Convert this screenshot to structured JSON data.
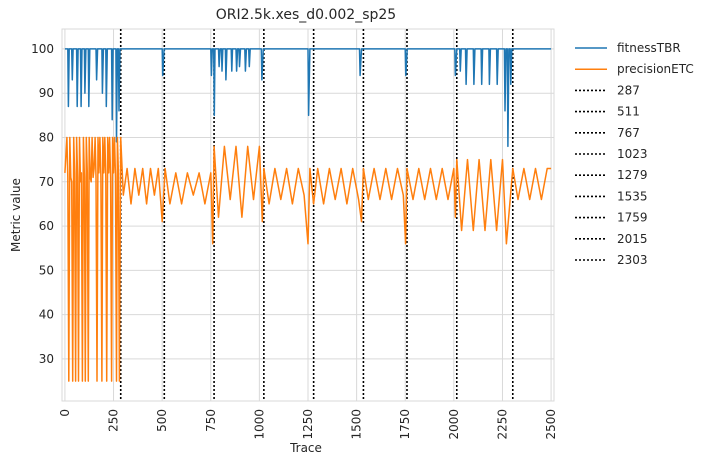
{
  "chart_data": {
    "type": "line",
    "title": "ORI2.5k.xes_d0.002_sp25",
    "xlabel": "Trace",
    "ylabel": "Metric value",
    "xlim": [
      -15,
      2515
    ],
    "ylim": [
      20.5,
      104.5
    ],
    "xticks": [
      0,
      250,
      500,
      750,
      1000,
      1250,
      1500,
      1750,
      2000,
      2250,
      2500
    ],
    "yticks": [
      30,
      40,
      50,
      60,
      70,
      80,
      90,
      100
    ],
    "grid": true,
    "legend_position": "outside-right",
    "series": [
      {
        "name": "fitnessTBR",
        "color": "#1f77b4",
        "points": [
          [
            0,
            100
          ],
          [
            15,
            100
          ],
          [
            18,
            87
          ],
          [
            22,
            100
          ],
          [
            35,
            100
          ],
          [
            38,
            93
          ],
          [
            42,
            100
          ],
          [
            60,
            100
          ],
          [
            63,
            87
          ],
          [
            68,
            100
          ],
          [
            80,
            100
          ],
          [
            83,
            87
          ],
          [
            88,
            100
          ],
          [
            100,
            100
          ],
          [
            103,
            90
          ],
          [
            108,
            100
          ],
          [
            120,
            100
          ],
          [
            123,
            87
          ],
          [
            128,
            100
          ],
          [
            160,
            100
          ],
          [
            163,
            93
          ],
          [
            168,
            100
          ],
          [
            190,
            100
          ],
          [
            193,
            90
          ],
          [
            198,
            100
          ],
          [
            210,
            100
          ],
          [
            213,
            87
          ],
          [
            218,
            100
          ],
          [
            240,
            100
          ],
          [
            243,
            84
          ],
          [
            248,
            100
          ],
          [
            262,
            100
          ],
          [
            265,
            79
          ],
          [
            270,
            100
          ],
          [
            275,
            100
          ],
          [
            278,
            86
          ],
          [
            283,
            100
          ],
          [
            500,
            100
          ],
          [
            503,
            94
          ],
          [
            510,
            100
          ],
          [
            750,
            100
          ],
          [
            753,
            94
          ],
          [
            758,
            100
          ],
          [
            765,
            100
          ],
          [
            768,
            85
          ],
          [
            772,
            100
          ],
          [
            790,
            100
          ],
          [
            793,
            96
          ],
          [
            798,
            100
          ],
          [
            805,
            100
          ],
          [
            808,
            95
          ],
          [
            812,
            100
          ],
          [
            825,
            100
          ],
          [
            828,
            93
          ],
          [
            833,
            100
          ],
          [
            855,
            100
          ],
          [
            858,
            95
          ],
          [
            862,
            100
          ],
          [
            880,
            100
          ],
          [
            883,
            95
          ],
          [
            888,
            100
          ],
          [
            895,
            100
          ],
          [
            898,
            96
          ],
          [
            903,
            100
          ],
          [
            925,
            100
          ],
          [
            928,
            95
          ],
          [
            933,
            100
          ],
          [
            945,
            100
          ],
          [
            948,
            96
          ],
          [
            953,
            100
          ],
          [
            1010,
            100
          ],
          [
            1013,
            93
          ],
          [
            1020,
            100
          ],
          [
            1250,
            100
          ],
          [
            1253,
            85
          ],
          [
            1260,
            100
          ],
          [
            1515,
            100
          ],
          [
            1518,
            94
          ],
          [
            1525,
            100
          ],
          [
            1750,
            100
          ],
          [
            1753,
            94
          ],
          [
            1760,
            100
          ],
          [
            2005,
            100
          ],
          [
            2008,
            94
          ],
          [
            2015,
            100
          ],
          [
            2030,
            100
          ],
          [
            2033,
            95
          ],
          [
            2038,
            100
          ],
          [
            2060,
            100
          ],
          [
            2063,
            92
          ],
          [
            2068,
            100
          ],
          [
            2100,
            100
          ],
          [
            2103,
            92
          ],
          [
            2108,
            100
          ],
          [
            2140,
            100
          ],
          [
            2143,
            92
          ],
          [
            2148,
            100
          ],
          [
            2180,
            100
          ],
          [
            2183,
            92
          ],
          [
            2188,
            100
          ],
          [
            2220,
            100
          ],
          [
            2223,
            92
          ],
          [
            2228,
            100
          ],
          [
            2260,
            100
          ],
          [
            2263,
            86
          ],
          [
            2268,
            100
          ],
          [
            2275,
            100
          ],
          [
            2278,
            78
          ],
          [
            2283,
            100
          ],
          [
            2290,
            100
          ],
          [
            2293,
            92
          ],
          [
            2298,
            100
          ],
          [
            2500,
            100
          ]
        ]
      },
      {
        "name": "precisionETC",
        "color": "#ff7f0e",
        "points": [
          [
            0,
            72
          ],
          [
            10,
            80
          ],
          [
            15,
            71
          ],
          [
            20,
            25
          ],
          [
            25,
            80
          ],
          [
            30,
            71
          ],
          [
            35,
            70
          ],
          [
            40,
            25
          ],
          [
            45,
            80
          ],
          [
            50,
            72
          ],
          [
            55,
            25
          ],
          [
            60,
            80
          ],
          [
            65,
            71
          ],
          [
            70,
            25
          ],
          [
            75,
            80
          ],
          [
            80,
            70
          ],
          [
            85,
            72
          ],
          [
            90,
            25
          ],
          [
            95,
            80
          ],
          [
            100,
            71
          ],
          [
            105,
            25
          ],
          [
            110,
            80
          ],
          [
            115,
            72
          ],
          [
            120,
            25
          ],
          [
            125,
            80
          ],
          [
            130,
            71
          ],
          [
            135,
            70
          ],
          [
            140,
            80
          ],
          [
            145,
            71
          ],
          [
            150,
            73
          ],
          [
            155,
            80
          ],
          [
            160,
            71
          ],
          [
            165,
            25
          ],
          [
            170,
            80
          ],
          [
            175,
            72
          ],
          [
            180,
            80
          ],
          [
            185,
            71
          ],
          [
            190,
            25
          ],
          [
            195,
            80
          ],
          [
            200,
            72
          ],
          [
            205,
            80
          ],
          [
            210,
            71
          ],
          [
            215,
            25
          ],
          [
            220,
            80
          ],
          [
            225,
            72
          ],
          [
            230,
            80
          ],
          [
            235,
            71
          ],
          [
            240,
            25
          ],
          [
            245,
            80
          ],
          [
            250,
            72
          ],
          [
            255,
            80
          ],
          [
            260,
            71
          ],
          [
            265,
            25
          ],
          [
            270,
            80
          ],
          [
            275,
            72
          ],
          [
            280,
            25
          ],
          [
            287,
            80
          ],
          [
            300,
            67
          ],
          [
            320,
            73
          ],
          [
            340,
            65
          ],
          [
            360,
            73
          ],
          [
            380,
            67
          ],
          [
            400,
            73
          ],
          [
            420,
            65
          ],
          [
            440,
            73
          ],
          [
            460,
            67
          ],
          [
            480,
            73
          ],
          [
            500,
            61
          ],
          [
            515,
            73
          ],
          [
            540,
            65
          ],
          [
            570,
            72
          ],
          [
            600,
            65
          ],
          [
            630,
            72
          ],
          [
            660,
            67
          ],
          [
            690,
            72
          ],
          [
            720,
            65
          ],
          [
            750,
            72
          ],
          [
            760,
            56
          ],
          [
            767,
            78
          ],
          [
            790,
            62
          ],
          [
            820,
            78
          ],
          [
            850,
            66
          ],
          [
            880,
            78
          ],
          [
            910,
            62
          ],
          [
            940,
            78
          ],
          [
            970,
            66
          ],
          [
            1000,
            78
          ],
          [
            1015,
            61
          ],
          [
            1023,
            73
          ],
          [
            1050,
            65
          ],
          [
            1080,
            73
          ],
          [
            1110,
            66
          ],
          [
            1140,
            73
          ],
          [
            1170,
            65
          ],
          [
            1200,
            73
          ],
          [
            1230,
            67
          ],
          [
            1250,
            56
          ],
          [
            1260,
            73
          ],
          [
            1279,
            65
          ],
          [
            1300,
            73
          ],
          [
            1330,
            65
          ],
          [
            1360,
            73
          ],
          [
            1390,
            66
          ],
          [
            1420,
            73
          ],
          [
            1450,
            65
          ],
          [
            1480,
            73
          ],
          [
            1510,
            66
          ],
          [
            1525,
            61
          ],
          [
            1535,
            73
          ],
          [
            1560,
            66
          ],
          [
            1590,
            73
          ],
          [
            1620,
            66
          ],
          [
            1650,
            73
          ],
          [
            1680,
            66
          ],
          [
            1710,
            73
          ],
          [
            1740,
            67
          ],
          [
            1752,
            56
          ],
          [
            1759,
            73
          ],
          [
            1790,
            66
          ],
          [
            1820,
            73
          ],
          [
            1850,
            66
          ],
          [
            1880,
            73
          ],
          [
            1910,
            66
          ],
          [
            1940,
            73
          ],
          [
            1970,
            66
          ],
          [
            2000,
            73
          ],
          [
            2008,
            62
          ],
          [
            2015,
            75
          ],
          [
            2040,
            59
          ],
          [
            2070,
            75
          ],
          [
            2100,
            59
          ],
          [
            2130,
            75
          ],
          [
            2160,
            59
          ],
          [
            2190,
            75
          ],
          [
            2220,
            59
          ],
          [
            2250,
            75
          ],
          [
            2270,
            56
          ],
          [
            2303,
            73
          ],
          [
            2330,
            66
          ],
          [
            2360,
            73
          ],
          [
            2390,
            66
          ],
          [
            2420,
            73
          ],
          [
            2450,
            66
          ],
          [
            2480,
            73
          ],
          [
            2500,
            73
          ]
        ]
      }
    ],
    "vlines": [
      {
        "x": 287,
        "label": "287"
      },
      {
        "x": 511,
        "label": "511"
      },
      {
        "x": 767,
        "label": "767"
      },
      {
        "x": 1023,
        "label": "1023"
      },
      {
        "x": 1279,
        "label": "1279"
      },
      {
        "x": 1535,
        "label": "1535"
      },
      {
        "x": 1759,
        "label": "1759"
      },
      {
        "x": 2015,
        "label": "2015"
      },
      {
        "x": 2303,
        "label": "2303"
      }
    ]
  }
}
